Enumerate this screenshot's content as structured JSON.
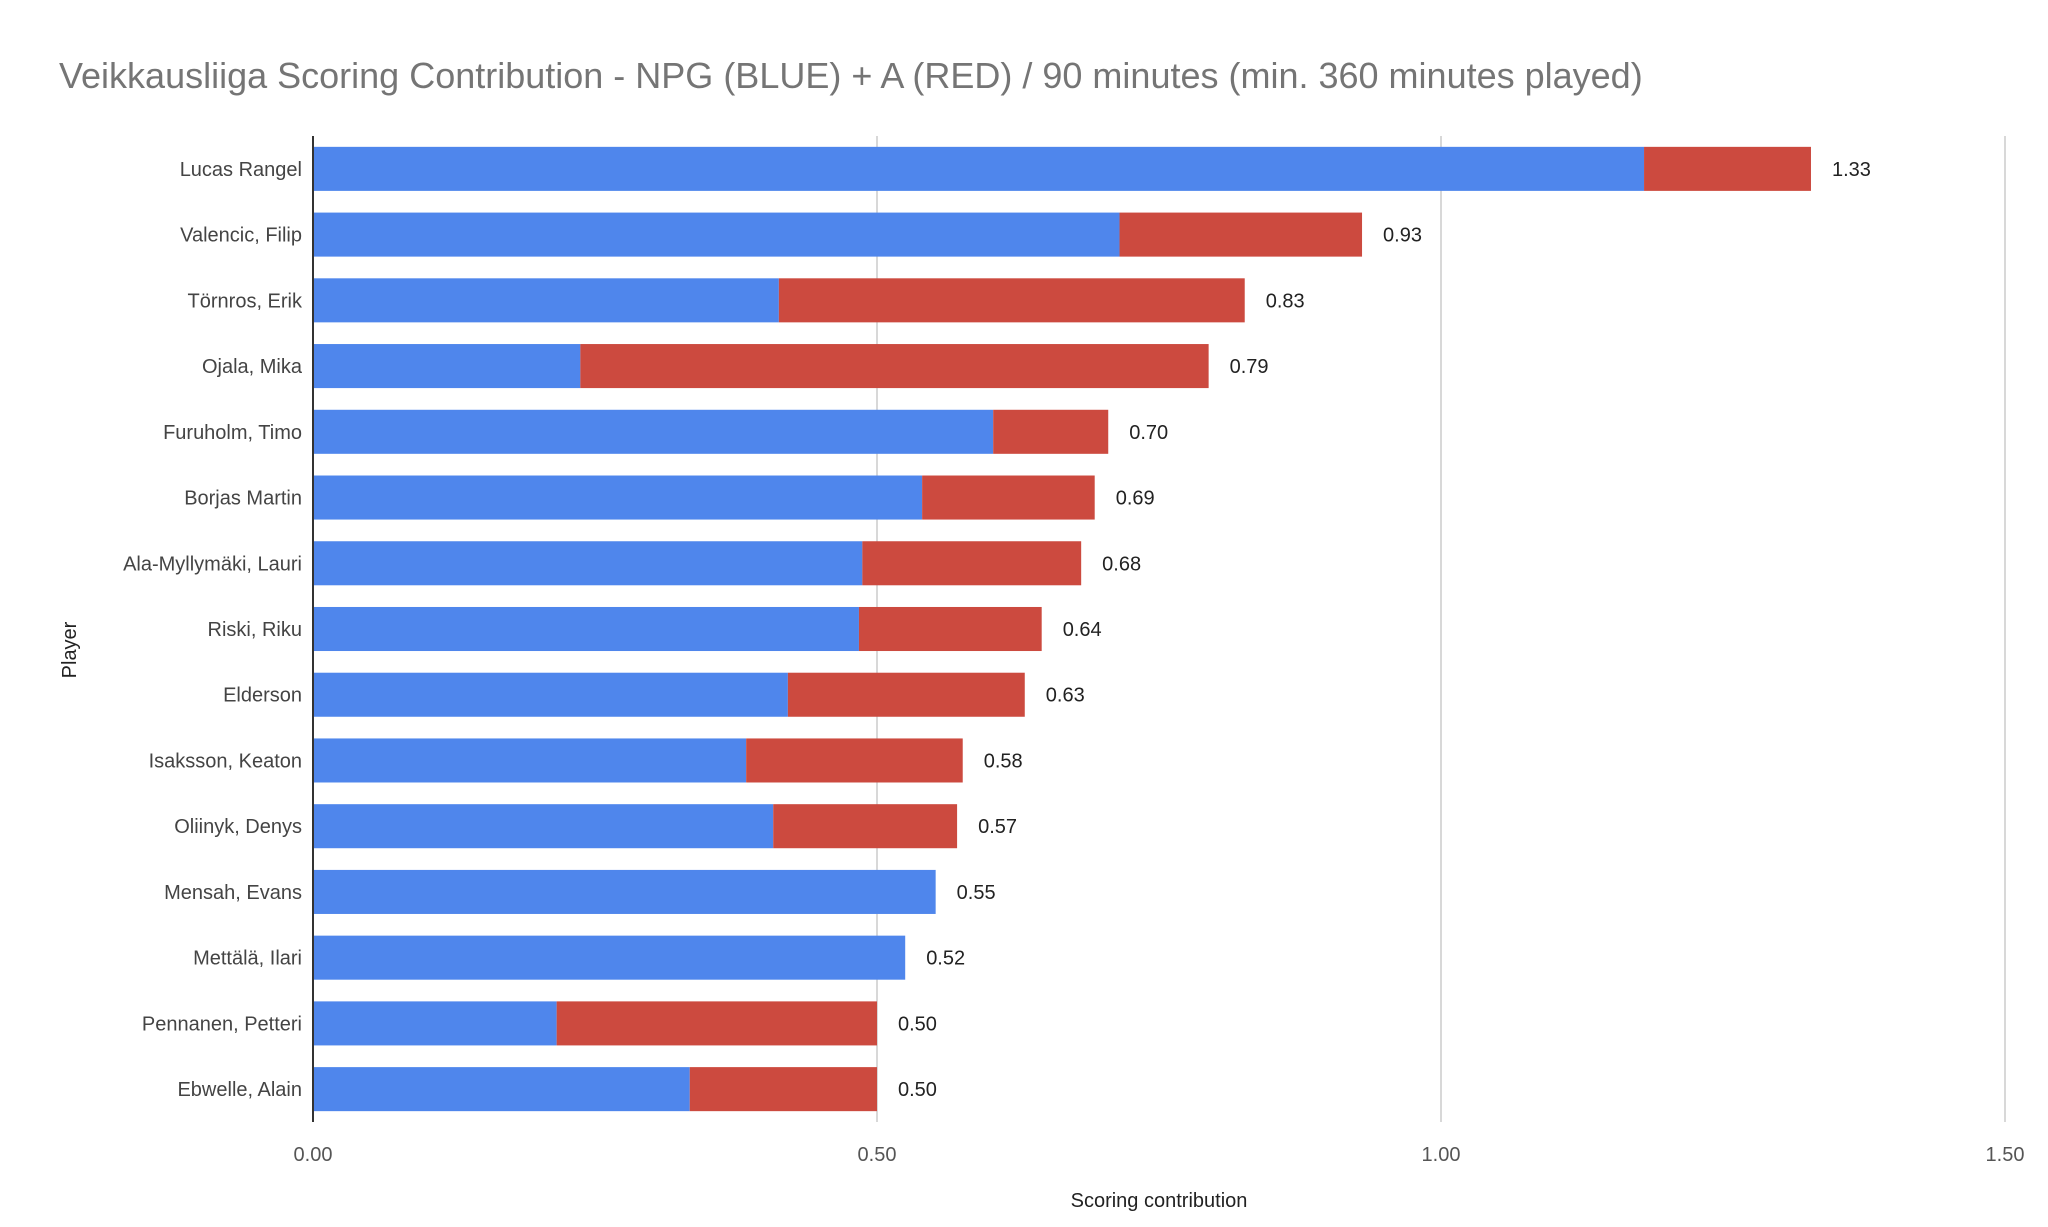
{
  "chart_data": {
    "type": "bar",
    "orientation": "horizontal",
    "stacked": true,
    "title": "Veikkausliiga Scoring Contribution - NPG (BLUE) + A (RED) / 90 minutes (min. 360 minutes played)",
    "xlabel": "Scoring contribution",
    "ylabel": "Player",
    "xlim": [
      0,
      1.5
    ],
    "xticks": [
      "0.00",
      "0.50",
      "1.00",
      "1.50"
    ],
    "grid": "vertical",
    "legend": "none",
    "categories": [
      "Lucas Rangel",
      "Valencic, Filip",
      "Törnros, Erik",
      "Ojala, Mika",
      "Furuholm, Timo",
      "Borjas Martin",
      "Ala-Myllymäki, Lauri",
      "Riski, Riku",
      "Elderson",
      "Isaksson, Keaton",
      "Oliinyk, Denys",
      "Mensah, Evans",
      "Mettälä, Ilari",
      "Pennanen, Petteri",
      "Ebwelle, Alain"
    ],
    "series": [
      {
        "color": "#4f86ec",
        "values": [
          1.18,
          0.715,
          0.413,
          0.237,
          0.603,
          0.54,
          0.487,
          0.484,
          0.421,
          0.384,
          0.408,
          0.552,
          0.525,
          0.216,
          0.334
        ]
      },
      {
        "color": "#cc4a3f",
        "values": [
          0.148,
          0.215,
          0.413,
          0.557,
          0.102,
          0.153,
          0.194,
          0.162,
          0.21,
          0.192,
          0.163,
          0,
          0,
          0.284,
          0.166
        ]
      }
    ],
    "totals": [
      "1.33",
      "0.93",
      "0.83",
      "0.79",
      "0.70",
      "0.69",
      "0.68",
      "0.64",
      "0.63",
      "0.58",
      "0.57",
      "0.55",
      "0.52",
      "0.50",
      "0.50"
    ]
  }
}
